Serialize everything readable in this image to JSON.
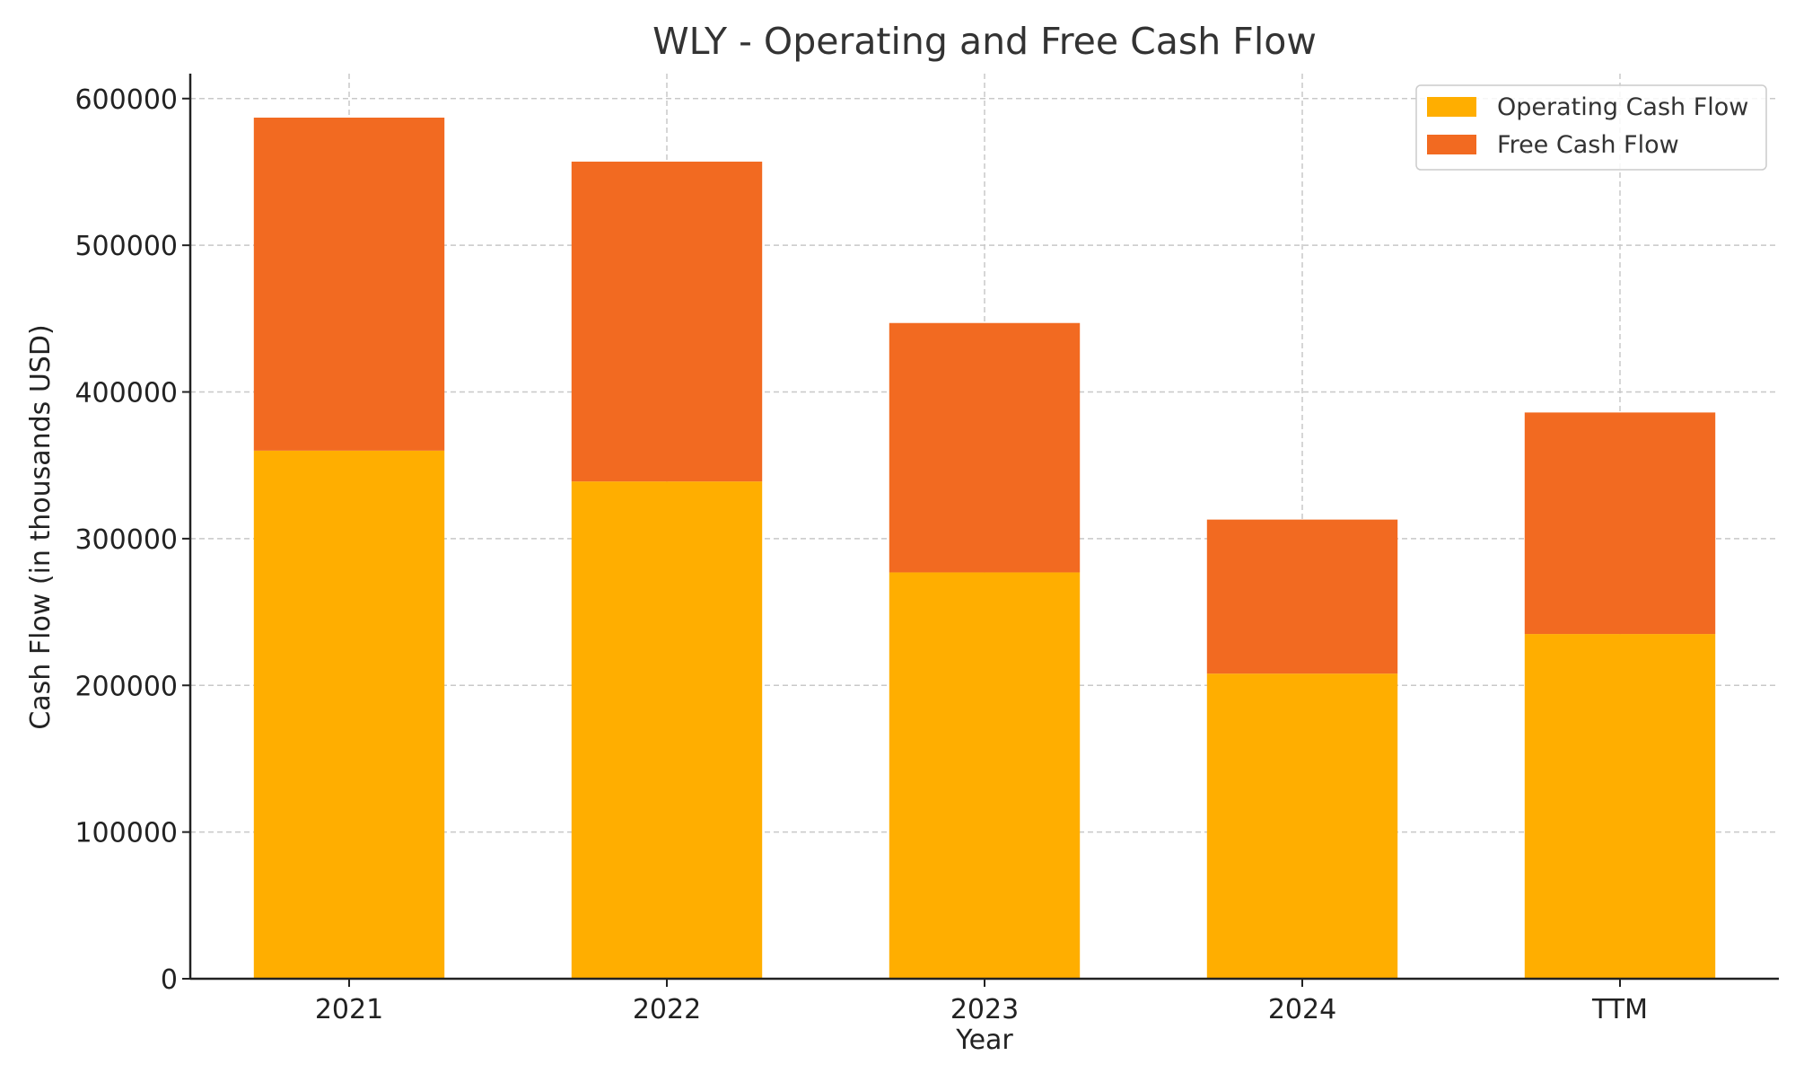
{
  "chart_data": {
    "type": "bar",
    "stacked": true,
    "title": "WLY - Operating and Free Cash Flow",
    "xlabel": "Year",
    "ylabel": "Cash Flow (in thousands USD)",
    "categories": [
      "2021",
      "2022",
      "2023",
      "2024",
      "TTM"
    ],
    "series": [
      {
        "name": "Operating Cash Flow",
        "color": "#FFAE00",
        "values": [
          360000,
          339000,
          277000,
          208000,
          235000
        ]
      },
      {
        "name": "Free Cash Flow",
        "color": "#F26A21",
        "values": [
          227000,
          218000,
          170000,
          105000,
          151000
        ]
      }
    ],
    "ylim": [
      0,
      617000
    ],
    "yticks": [
      0,
      100000,
      200000,
      300000,
      400000,
      500000,
      600000
    ],
    "ytick_labels": [
      "0",
      "100000",
      "200000",
      "300000",
      "400000",
      "500000",
      "600000"
    ],
    "grid": true,
    "legend_position": "top-right"
  }
}
